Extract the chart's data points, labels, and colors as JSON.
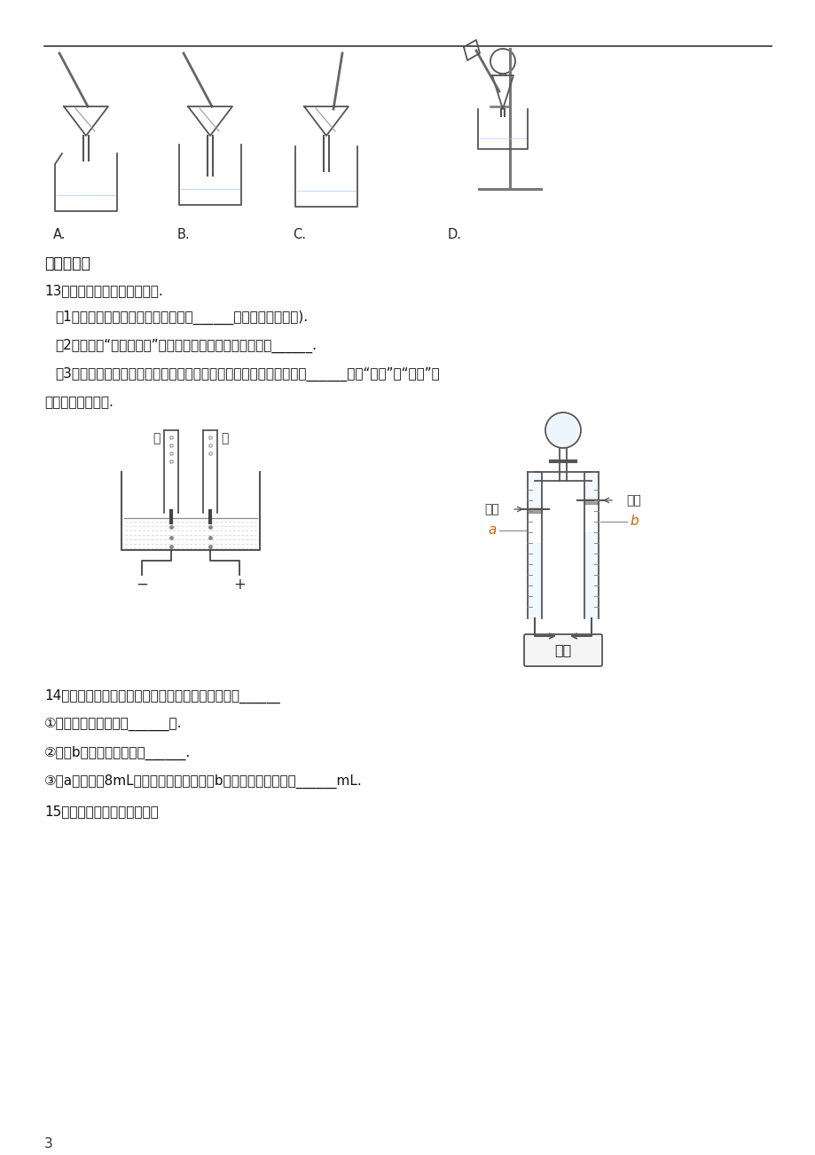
{
  "bg_color": "#ffffff",
  "text_color": "#000000",
  "page_number": "3",
  "section_header": "二．填空题",
  "q13_title": "13．水与人类的生活息息相关.",
  "q13_1": "（1）保持水的化学性质的最小粒子是______（用化学符号表示).",
  "q13_2": "（2）如图是“电解水实验”示意图，图中试管乙中的气体是______.",
  "q13_3": "（3）生活中，人们常用肌皂水检验水样品是硬水还是软水．肌皂水遇______（填“硬水”或“软水”）",
  "q13_3b": "泡沫少、易起浮渣.",
  "q14_title": "14．如图是水的电解实验装置图，请回答下列问题：______",
  "q14_1": "①该反应是将电能转化______能.",
  "q14_2": "②检验b管内气体的方法是______.",
  "q14_3": "③若a管收集到8mL气体，则在相同条件下b管应收集到的气体是______mL.",
  "q15_title": "15．分析图中内容回答问题，",
  "label_A": "A.",
  "label_B": "B.",
  "label_C": "C.",
  "label_D": "D.",
  "left_jia": "甲",
  "left_yi": "乙",
  "left_minus": "−",
  "left_plus": "+",
  "right_huosai": "活塞",
  "right_a": "a",
  "right_b": "b",
  "right_power": "电源"
}
